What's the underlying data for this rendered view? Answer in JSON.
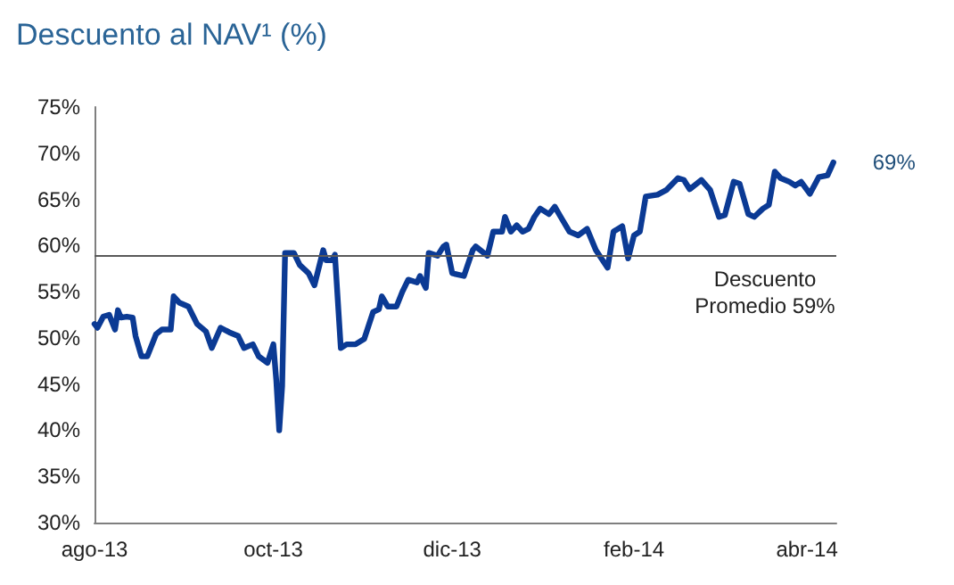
{
  "chart_data": {
    "type": "line",
    "title": "Descuento al NAV¹ (%)",
    "x": [
      "2013-08-01",
      "2013-08-02",
      "2013-08-04",
      "2013-08-06",
      "2013-08-08",
      "2013-08-09",
      "2013-08-10",
      "2013-08-12",
      "2013-08-14",
      "2013-08-15",
      "2013-08-17",
      "2013-08-19",
      "2013-08-22",
      "2013-08-24",
      "2013-08-27",
      "2013-08-28",
      "2013-08-30",
      "2013-09-02",
      "2013-09-05",
      "2013-09-08",
      "2013-09-10",
      "2013-09-13",
      "2013-09-16",
      "2013-09-19",
      "2013-09-21",
      "2013-09-24",
      "2013-09-26",
      "2013-09-29",
      "2013-10-01",
      "2013-10-02",
      "2013-10-03",
      "2013-10-04",
      "2013-10-05",
      "2013-10-08",
      "2013-10-10",
      "2013-10-13",
      "2013-10-15",
      "2013-10-18",
      "2013-10-19",
      "2013-10-21",
      "2013-10-22",
      "2013-10-24",
      "2013-10-26",
      "2013-10-29",
      "2013-11-01",
      "2013-11-04",
      "2013-11-06",
      "2013-11-07",
      "2013-11-09",
      "2013-11-12",
      "2013-11-14",
      "2013-11-16",
      "2013-11-19",
      "2013-11-20",
      "2013-11-22",
      "2013-11-23",
      "2013-11-26",
      "2013-11-28",
      "2013-11-29",
      "2013-12-01",
      "2013-12-05",
      "2013-12-08",
      "2013-12-09",
      "2013-12-13",
      "2013-12-15",
      "2013-12-18",
      "2013-12-19",
      "2013-12-21",
      "2013-12-23",
      "2013-12-25",
      "2013-12-27",
      "2013-12-29",
      "2013-12-31",
      "2014-01-03",
      "2014-01-05",
      "2014-01-07",
      "2014-01-10",
      "2014-01-13",
      "2014-01-16",
      "2014-01-19",
      "2014-01-23",
      "2014-01-25",
      "2014-01-28",
      "2014-01-30",
      "2014-02-01",
      "2014-02-03",
      "2014-02-05",
      "2014-02-09",
      "2014-02-12",
      "2014-02-16",
      "2014-02-18",
      "2014-02-20",
      "2014-02-24",
      "2014-02-27",
      "2014-03-02",
      "2014-03-04",
      "2014-03-07",
      "2014-03-09",
      "2014-03-12",
      "2014-03-14",
      "2014-03-17",
      "2014-03-19",
      "2014-03-21",
      "2014-03-23",
      "2014-03-26",
      "2014-03-28",
      "2014-03-30",
      "2014-04-02",
      "2014-04-05",
      "2014-04-08",
      "2014-04-10"
    ],
    "series": [
      {
        "color": "#0b3a94",
        "values": [
          51.5,
          51.1,
          52.3,
          52.5,
          50.9,
          53.0,
          52.2,
          52.3,
          52.2,
          50.2,
          48.0,
          48.0,
          50.4,
          50.9,
          50.9,
          54.5,
          53.8,
          53.4,
          51.5,
          50.7,
          48.9,
          51.1,
          50.6,
          50.2,
          48.9,
          49.3,
          48.0,
          47.3,
          49.3,
          45.4,
          40.0,
          44.8,
          59.2,
          59.2,
          57.9,
          57.0,
          55.7,
          59.5,
          58.4,
          58.4,
          59.0,
          48.9,
          49.3,
          49.3,
          49.9,
          52.8,
          53.1,
          54.5,
          53.4,
          53.4,
          55.0,
          56.3,
          56.0,
          56.7,
          55.4,
          59.2,
          58.9,
          59.9,
          60.1,
          57.0,
          56.7,
          59.5,
          59.9,
          58.9,
          61.5,
          61.5,
          63.1,
          61.5,
          62.2,
          61.5,
          61.8,
          63.1,
          64.0,
          63.4,
          64.2,
          63.1,
          61.5,
          61.1,
          61.8,
          59.5,
          57.6,
          61.5,
          62.1,
          58.6,
          61.1,
          61.5,
          65.3,
          65.5,
          66.0,
          67.3,
          67.1,
          66.1,
          67.1,
          66.0,
          63.1,
          63.3,
          66.9,
          66.7,
          63.4,
          63.1,
          64.0,
          64.4,
          68.0,
          67.3,
          66.9,
          66.5,
          66.9,
          65.6,
          67.4,
          67.6,
          69
        ],
        "value_labels": [
          null,
          null,
          null,
          null,
          null,
          null,
          null,
          null,
          null,
          null,
          null,
          null,
          null,
          null,
          null,
          null,
          null,
          null,
          null,
          null,
          null,
          null,
          null,
          null,
          null,
          null,
          null,
          null,
          null,
          null,
          null,
          null,
          null,
          null,
          null,
          null,
          null,
          null,
          null,
          null,
          null,
          null,
          null,
          null,
          null,
          null,
          null,
          null,
          null,
          null,
          null,
          null,
          null,
          null,
          null,
          null,
          null,
          null,
          null,
          null,
          null,
          null,
          null,
          null,
          null,
          null,
          null,
          null,
          null,
          null,
          null,
          null,
          null,
          null,
          null,
          null,
          null,
          null,
          null,
          null,
          null,
          null,
          null,
          null,
          null,
          null,
          null,
          null,
          null,
          null,
          null,
          null,
          null,
          null,
          null,
          null,
          null,
          null,
          null,
          null,
          null,
          null,
          null,
          null,
          null,
          null,
          null,
          null,
          null,
          null,
          "69%"
        ]
      }
    ],
    "xlim": [
      "2013-08-01",
      "2014-04-11"
    ],
    "xticks": [
      {
        "value": "2013-08-01",
        "label": "ago-13"
      },
      {
        "value": "2013-10-01",
        "label": "oct-13"
      },
      {
        "value": "2013-12-01",
        "label": "dic-13"
      },
      {
        "value": "2014-02-01",
        "label": "feb-14"
      },
      {
        "value": "2014-04-01",
        "label": "abr-14"
      }
    ],
    "ylim": [
      30,
      75
    ],
    "yticks": [
      {
        "value": 30,
        "label": "30%"
      },
      {
        "value": 35,
        "label": "35%"
      },
      {
        "value": 40,
        "label": "40%"
      },
      {
        "value": 45,
        "label": "45%"
      },
      {
        "value": 50,
        "label": "50%"
      },
      {
        "value": 55,
        "label": "55%"
      },
      {
        "value": 60,
        "label": "60%"
      },
      {
        "value": 65,
        "label": "65%"
      },
      {
        "value": 70,
        "label": "70%"
      },
      {
        "value": 75,
        "label": "75%"
      }
    ],
    "ref_lines": [
      {
        "axis": "y",
        "value": 59,
        "label": "Descuento\nPromedio 59%",
        "color": "#595959"
      }
    ],
    "grid": false,
    "line_style": "solid"
  }
}
